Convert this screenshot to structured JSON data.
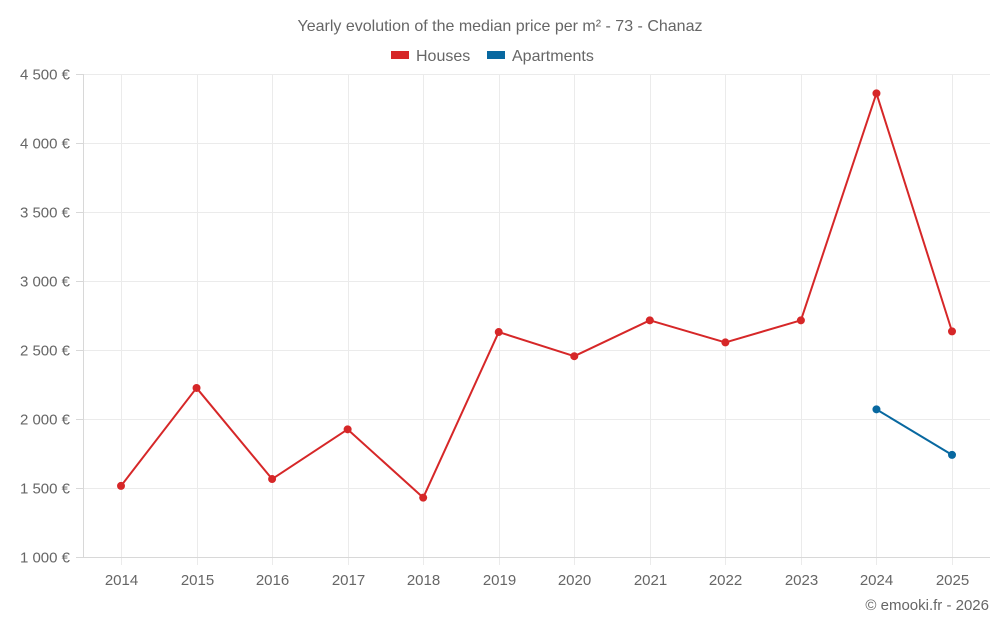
{
  "chart_data": {
    "type": "line",
    "title": "Yearly evolution of the median price per m² - 73 - Chanaz",
    "xlabel": "",
    "ylabel": "",
    "categories": [
      "2014",
      "2015",
      "2016",
      "2017",
      "2018",
      "2019",
      "2020",
      "2021",
      "2022",
      "2023",
      "2024",
      "2025"
    ],
    "series": [
      {
        "name": "Houses",
        "color": "#d62728",
        "values": [
          1515,
          2225,
          1565,
          1925,
          1430,
          2630,
          2455,
          2715,
          2555,
          2715,
          4360,
          2635
        ]
      },
      {
        "name": "Apartments",
        "color": "#0868a0",
        "values": [
          null,
          null,
          null,
          null,
          null,
          null,
          null,
          null,
          null,
          null,
          2070,
          1740
        ]
      }
    ],
    "ylim": [
      1000,
      4500
    ],
    "yticks": [
      1000,
      1500,
      2000,
      2500,
      3000,
      3500,
      4000,
      4500
    ],
    "ytick_labels": [
      "1 000 €",
      "1 500 €",
      "2 000 €",
      "2 500 €",
      "3 000 €",
      "3 500 €",
      "4 000 €",
      "4 500 €"
    ],
    "grid": true,
    "legend_position": "top-center"
  },
  "legend": {
    "houses_label": "Houses",
    "apartments_label": "Apartments"
  },
  "credit": "© emooki.fr - 2026"
}
